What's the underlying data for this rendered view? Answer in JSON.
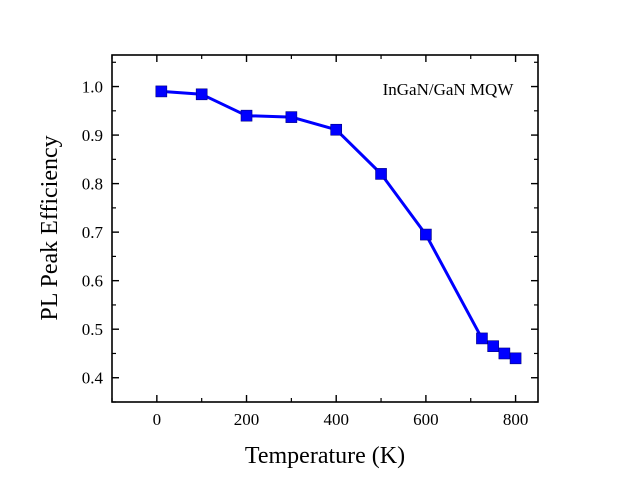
{
  "chart_data": {
    "type": "line",
    "title": "",
    "xlabel": "Temperature (K)",
    "ylabel": "PL Peak Efficiency",
    "annotation": "InGaN/GaN MQW",
    "xlim": [
      -100,
      850
    ],
    "ylim": [
      0.35,
      1.065
    ],
    "xticks": [
      0,
      200,
      400,
      600,
      800
    ],
    "xtick_labels": [
      "0",
      "200",
      "400",
      "600",
      "800"
    ],
    "yticks": [
      0.4,
      0.5,
      0.6,
      0.7,
      0.8,
      0.9,
      1.0
    ],
    "ytick_labels": [
      "0.4",
      "0.5",
      "0.6",
      "0.7",
      "0.8",
      "0.9",
      "1.0"
    ],
    "grid": false,
    "legend": "none",
    "series": [
      {
        "color": "#0000ff",
        "marker": "square",
        "x": [
          10,
          100,
          200,
          300,
          400,
          500,
          600,
          725,
          750,
          775,
          800
        ],
        "y": [
          0.99,
          0.984,
          0.94,
          0.937,
          0.911,
          0.82,
          0.695,
          0.481,
          0.465,
          0.45,
          0.44
        ]
      }
    ]
  }
}
